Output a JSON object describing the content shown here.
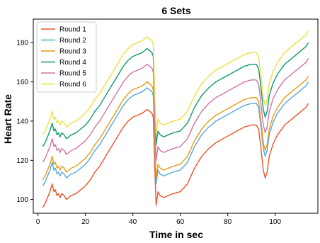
{
  "chart_data": {
    "type": "line",
    "title": "6 Sets",
    "xlabel": "Time in sec",
    "ylabel": "Heart Rate",
    "xlim": [
      -2,
      118
    ],
    "ylim": [
      93,
      192
    ],
    "xticks": [
      0,
      20,
      40,
      60,
      80,
      100
    ],
    "yticks": [
      100,
      120,
      140,
      160,
      180
    ],
    "grid": false,
    "legend_position": "top-left",
    "base_x": [
      2,
      3,
      4,
      5,
      6,
      6.7,
      7.3,
      8,
      8.7,
      9.3,
      10,
      11,
      12,
      14,
      16,
      18,
      20,
      22,
      24,
      26,
      28,
      30,
      32,
      34,
      36,
      38,
      40,
      42,
      44,
      46,
      47,
      48,
      48.6,
      49.2,
      49.8,
      50.6,
      51.5,
      53,
      55,
      57,
      60,
      63,
      66,
      69,
      72,
      75,
      78,
      81,
      84,
      87,
      90,
      92,
      93,
      94,
      95,
      95.8,
      96.6,
      97.5,
      99,
      101,
      104,
      107,
      110,
      113,
      114
    ],
    "series": [
      {
        "name": "Round 1",
        "color": "#e8562a",
        "values": [
          96,
          98,
          101,
          104,
          108,
          104,
          105,
          102,
          103,
          101,
          103,
          102,
          100,
          102,
          103,
          105,
          107,
          110,
          114,
          117,
          121,
          125,
          129,
          133,
          137,
          140,
          142,
          143,
          144,
          146,
          145,
          144,
          142,
          118,
          97,
          104,
          102,
          101,
          102,
          103,
          104,
          108,
          116,
          122,
          126,
          129,
          131,
          133,
          135,
          137,
          138,
          138,
          136,
          126,
          115,
          111,
          114,
          122,
          128,
          133,
          138,
          141,
          144,
          147,
          149
        ]
      },
      {
        "name": "Round 2",
        "color": "#56a8de",
        "values": [
          107,
          109,
          112,
          115,
          119,
          115,
          116,
          113,
          114,
          112,
          114,
          113,
          111,
          113,
          114,
          116,
          118,
          121,
          125,
          128,
          132,
          136,
          140,
          144,
          148,
          151,
          153,
          154,
          155,
          157,
          156,
          155,
          153,
          129,
          108,
          115,
          113,
          112,
          113,
          114,
          115,
          119,
          127,
          133,
          137,
          140,
          142,
          144,
          146,
          148,
          149,
          149,
          147,
          137,
          126,
          122,
          125,
          133,
          139,
          144,
          149,
          152,
          155,
          158,
          160
        ]
      },
      {
        "name": "Round 3",
        "color": "#e59b18",
        "values": [
          110,
          112,
          115,
          118,
          122,
          118,
          119,
          116,
          117,
          115,
          117,
          116,
          114,
          116,
          117,
          119,
          121,
          124,
          128,
          131,
          135,
          139,
          143,
          147,
          151,
          154,
          156,
          157,
          158,
          160,
          159,
          158,
          156,
          132,
          111,
          118,
          116,
          115,
          116,
          117,
          118,
          122,
          130,
          136,
          140,
          143,
          145,
          147,
          149,
          151,
          152,
          152,
          150,
          140,
          129,
          125,
          128,
          136,
          142,
          147,
          152,
          155,
          158,
          161,
          163
        ]
      },
      {
        "name": "Round 4",
        "color": "#0e9a6c",
        "values": [
          127,
          129,
          132,
          135,
          139,
          135,
          136,
          133,
          134,
          132,
          134,
          133,
          131,
          133,
          134,
          136,
          138,
          141,
          145,
          148,
          152,
          156,
          160,
          164,
          168,
          171,
          173,
          174,
          175,
          177,
          176,
          175,
          173,
          149,
          128,
          135,
          133,
          132,
          133,
          134,
          135,
          139,
          147,
          153,
          157,
          160,
          162,
          164,
          166,
          168,
          169,
          169,
          167,
          157,
          146,
          142,
          145,
          153,
          159,
          164,
          169,
          172,
          175,
          178,
          180
        ]
      },
      {
        "name": "Round 5",
        "color": "#cf74aa",
        "values": [
          119,
          121,
          124,
          127,
          131,
          127,
          128,
          125,
          126,
          124,
          126,
          125,
          123,
          125,
          126,
          128,
          130,
          133,
          137,
          140,
          144,
          148,
          152,
          156,
          160,
          163,
          165,
          166,
          167,
          169,
          168,
          167,
          165,
          141,
          120,
          127,
          125,
          124,
          125,
          126,
          127,
          131,
          139,
          145,
          149,
          152,
          154,
          156,
          158,
          160,
          161,
          161,
          159,
          149,
          138,
          134,
          137,
          145,
          151,
          156,
          161,
          164,
          167,
          170,
          172
        ]
      },
      {
        "name": "Round 6",
        "color": "#efe040",
        "values": [
          133,
          135,
          138,
          141,
          145,
          141,
          142,
          139,
          140,
          138,
          140,
          139,
          137,
          139,
          140,
          142,
          144,
          147,
          151,
          154,
          158,
          162,
          166,
          170,
          174,
          177,
          179,
          180,
          181,
          183,
          182,
          181,
          179,
          155,
          134,
          141,
          139,
          138,
          139,
          140,
          141,
          145,
          153,
          159,
          163,
          166,
          168,
          170,
          172,
          174,
          175,
          175,
          173,
          163,
          152,
          148,
          151,
          159,
          165,
          170,
          175,
          178,
          181,
          184,
          186
        ]
      }
    ]
  }
}
